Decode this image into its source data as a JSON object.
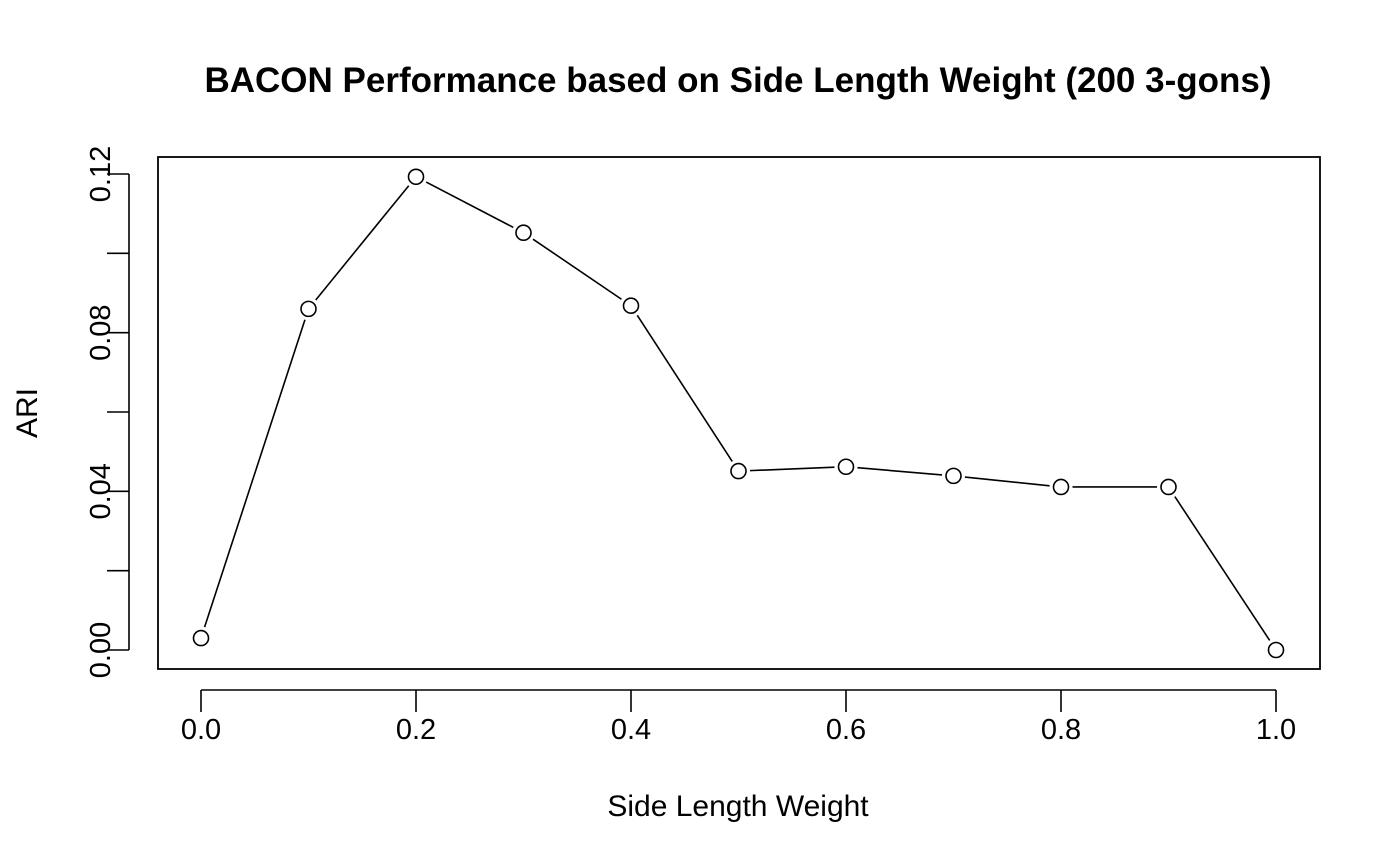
{
  "chart_data": {
    "type": "line",
    "title": "BACON Performance based on Side Length Weight (200 3-gons)",
    "xlabel": "Side Length Weight",
    "ylabel": "ARI",
    "xlim": [
      0.0,
      1.0
    ],
    "ylim": [
      0.0,
      0.12
    ],
    "x_ticks": [
      0.0,
      0.2,
      0.4,
      0.6,
      0.8,
      1.0
    ],
    "x_tick_labels": [
      "0.0",
      "0.2",
      "0.4",
      "0.6",
      "0.8",
      "1.0"
    ],
    "y_ticks": [
      0.0,
      0.02,
      0.04,
      0.06,
      0.08,
      0.1,
      0.12
    ],
    "y_tick_labels": [
      "0.00",
      "",
      "0.04",
      "",
      "0.08",
      "",
      "0.12"
    ],
    "grid": false,
    "marker": "open-circle",
    "series": [
      {
        "x": [
          0.0,
          0.1,
          0.2,
          0.3,
          0.4,
          0.5,
          0.6,
          0.7,
          0.8,
          0.9,
          1.0
        ],
        "y": [
          0.003,
          0.086,
          0.1193,
          0.1052,
          0.0868,
          0.0451,
          0.0462,
          0.0439,
          0.0411,
          0.0411,
          0.0
        ]
      }
    ]
  }
}
